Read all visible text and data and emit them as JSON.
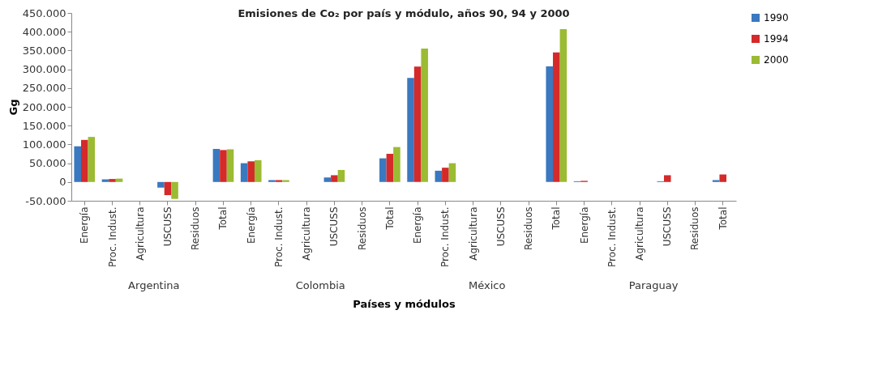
{
  "chart_data": {
    "type": "bar",
    "title": "Emisiones de Co₂ por país y módulo, años 90, 94 y 2000",
    "xlabel": "Países y módulos",
    "ylabel": "Gg",
    "categories": [
      "Energía",
      "Proc. Indust.",
      "Agricultura",
      "USCUSS",
      "Residuos",
      "Total",
      "Energía",
      "Proc. Indust.",
      "Agricultura",
      "USCUSS",
      "Residuos",
      "Total",
      "Energía",
      "Proc. Indust.",
      "Agricultura",
      "USCUSS",
      "Residuos",
      "Total",
      "Energía",
      "Proc. Indust.",
      "Agricultura",
      "USCUSS",
      "Residuos",
      "Total"
    ],
    "annotations": [
      "Argentina",
      "Colombia",
      "México",
      "Paraguay"
    ],
    "series": [
      {
        "name": "1990",
        "color": "#3a78c0",
        "values": [
          95000,
          7000,
          null,
          -15000,
          null,
          88000,
          50000,
          5000,
          null,
          12000,
          null,
          63000,
          277000,
          30000,
          null,
          null,
          null,
          308000,
          2000,
          null,
          null,
          2000,
          null,
          5000
        ]
      },
      {
        "name": "1994",
        "color": "#d42a2a",
        "values": [
          112000,
          8000,
          null,
          -35000,
          null,
          85000,
          55000,
          5000,
          null,
          18000,
          null,
          75000,
          307000,
          38000,
          null,
          null,
          null,
          345000,
          3000,
          null,
          null,
          18000,
          null,
          20000
        ]
      },
      {
        "name": "2000",
        "color": "#9bbb33",
        "values": [
          120000,
          9000,
          null,
          -45000,
          null,
          87000,
          58000,
          5000,
          null,
          32000,
          null,
          93000,
          355000,
          50000,
          null,
          null,
          null,
          407000,
          null,
          null,
          null,
          null,
          null,
          null
        ]
      }
    ],
    "ylim": [
      -50000,
      450000
    ],
    "yticks": [
      {
        "value": -50000,
        "label": "-50.000"
      },
      0,
      {
        "value": 50000,
        "label": "50.000"
      },
      {
        "value": 100000,
        "label": "100.000"
      },
      {
        "value": 150000,
        "label": "150.000"
      },
      {
        "value": 200000,
        "label": "200.000"
      },
      {
        "value": 250000,
        "label": "250.000"
      },
      {
        "value": 300000,
        "label": "300.000"
      },
      {
        "value": 350000,
        "label": "350.000"
      },
      {
        "value": 400000,
        "label": "400.000"
      },
      {
        "value": 450000,
        "label": "450.000"
      }
    ],
    "grid": false,
    "legend": "right"
  }
}
